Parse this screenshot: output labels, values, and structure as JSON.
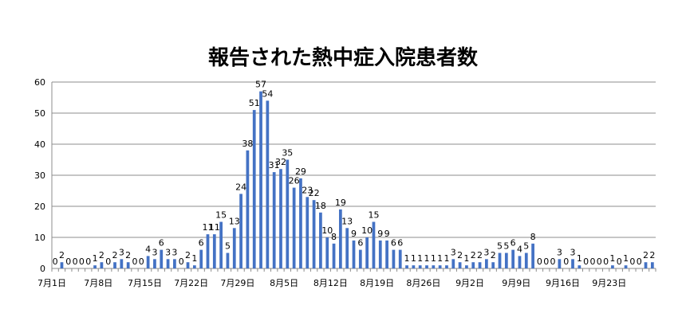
{
  "chart_data": {
    "type": "bar",
    "title": "報告された熱中症入院患者数",
    "xlabel": "",
    "ylabel": "",
    "ylim": [
      0,
      60
    ],
    "yticks": [
      0,
      10,
      20,
      30,
      40,
      50,
      60
    ],
    "grid": true,
    "legend": "none",
    "bar_color": "#4472C4",
    "tick_labels": [
      "7月1日",
      "7月8日",
      "7月15日",
      "7月22日",
      "7月29日",
      "8月5日",
      "8月12日",
      "8月19日",
      "8月26日",
      "9月2日",
      "9月9日",
      "9月16日",
      "9月23日"
    ],
    "series": [
      {
        "values": [
          0,
          2,
          0,
          0,
          0,
          0,
          1,
          2,
          0,
          2,
          3,
          2,
          0,
          0,
          4,
          3,
          6,
          3,
          3,
          0,
          2,
          1,
          6,
          11,
          11,
          15,
          5,
          13,
          24,
          38,
          51,
          57,
          54,
          31,
          32,
          35,
          26,
          29,
          23,
          22,
          18,
          10,
          8,
          19,
          13,
          9,
          6,
          10,
          15,
          9,
          9,
          6,
          6,
          1,
          1,
          1,
          1,
          1,
          1,
          1,
          3,
          2,
          1,
          2,
          2,
          3,
          2,
          5,
          5,
          6,
          4,
          5,
          8,
          0,
          0,
          0,
          3,
          0,
          3,
          1,
          0,
          0,
          0,
          0,
          1,
          0,
          1,
          0,
          0,
          2,
          2
        ]
      }
    ]
  }
}
